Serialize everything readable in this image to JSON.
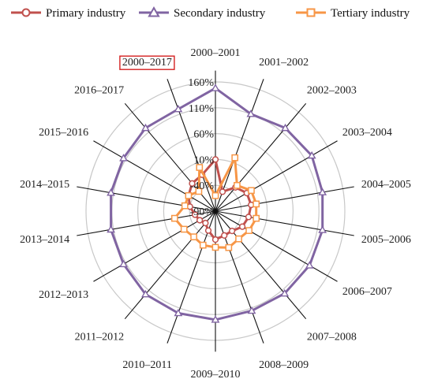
{
  "chart_data": {
    "type": "radar",
    "title": "",
    "categories": [
      "2000–2001",
      "2001–2002",
      "2002–2003",
      "2003–2004",
      "2004–2005",
      "2005–2006",
      "2006–2007",
      "2007–2008",
      "2008–2009",
      "2009–2010",
      "2010–2011",
      "2011–2012",
      "2012–2013",
      "2013–2014",
      "2014–2015",
      "2015–2016",
      "2016–2017",
      "2000–2017"
    ],
    "highlighted_category": "2000–2017",
    "rlim": [
      -90,
      160
    ],
    "ticks": [
      -90,
      -40,
      10,
      60,
      110,
      160
    ],
    "tick_labels": [
      "-90%",
      "-40%",
      "10%",
      "60%",
      "110%",
      "160%"
    ],
    "legend_position": "top",
    "series": [
      {
        "name": "Primary industry",
        "color": "#c0504d",
        "marker": "circle",
        "values": [
          10,
          -50,
          -30,
          -20,
          -20,
          -25,
          -30,
          -40,
          -40,
          -35,
          -50,
          -60,
          -55,
          -50,
          -40,
          -30,
          -20,
          -15
        ]
      },
      {
        "name": "Secondary industry",
        "color": "#8064a2",
        "marker": "triangle",
        "values": [
          148,
          110,
          120,
          125,
          120,
          120,
          120,
          118,
          115,
          120,
          120,
          120,
          115,
          115,
          115,
          115,
          120,
          120
        ]
      },
      {
        "name": "Tertiary industry",
        "color": "#f79646",
        "marker": "square",
        "values": [
          -60,
          20,
          -25,
          -10,
          -10,
          -10,
          -15,
          -20,
          -15,
          -20,
          -20,
          -25,
          -20,
          -10,
          -30,
          -30,
          -40,
          0
        ]
      }
    ]
  }
}
